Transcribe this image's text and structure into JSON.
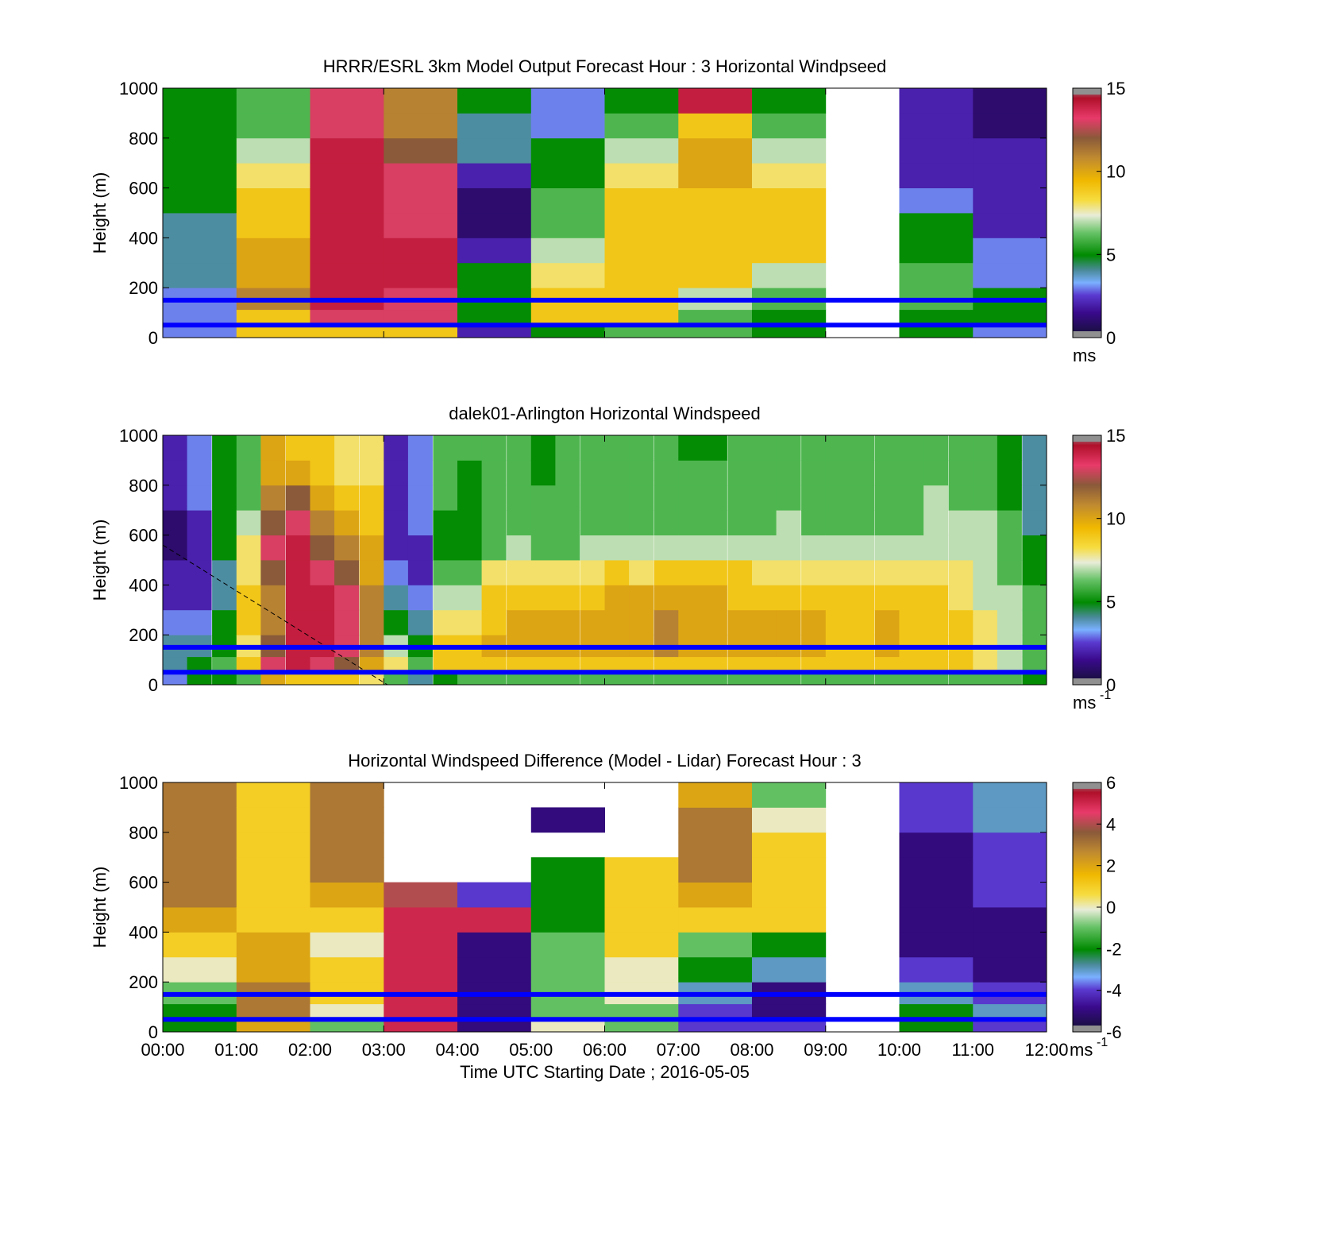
{
  "figure": {
    "xlabel": "Time UTC  Starting Date ; 2016-05-05",
    "line_color": "#0000ff",
    "line_heights": [
      150,
      50
    ],
    "time_ticks": [
      "00:00",
      "01:00",
      "02:00",
      "03:00",
      "04:00",
      "05:00",
      "06:00",
      "07:00",
      "08:00",
      "09:00",
      "10:00",
      "11:00",
      "12:00"
    ]
  },
  "chart_data": [
    {
      "type": "heatmap",
      "title": "HRRR/ESRL 3km Model Output   Forecast Hour : 3 Horizontal Windpseed",
      "ylabel": "Height (m)",
      "ylim": [
        0,
        1000
      ],
      "yticks": [
        "0",
        "200",
        "400",
        "600",
        "800",
        "1000"
      ],
      "xlim": [
        "00:00",
        "12:00"
      ],
      "colorbar": {
        "min": 0,
        "max": 15,
        "ticks": [
          "0",
          "5",
          "10",
          "15"
        ],
        "unit": "ms",
        "unit_sup": ""
      },
      "levels": [
        25,
        75,
        150,
        250,
        350,
        450,
        550,
        650,
        750,
        850,
        950
      ],
      "columns": [
        {
          "hour": 0,
          "values": [
            3,
            3,
            3,
            4,
            4,
            4,
            5,
            5,
            5,
            5,
            5
          ]
        },
        {
          "hour": 1,
          "values": [
            9,
            9,
            11,
            10,
            10,
            9,
            9,
            8,
            7,
            6,
            6
          ]
        },
        {
          "hour": 2,
          "values": [
            9,
            13,
            14,
            14,
            14,
            14,
            14,
            14,
            14,
            13,
            13
          ]
        },
        {
          "hour": 3,
          "values": [
            9,
            13,
            13,
            14,
            14,
            13,
            13,
            13,
            12,
            11,
            11
          ]
        },
        {
          "hour": 4,
          "values": [
            2,
            5,
            5,
            5,
            2,
            1,
            1,
            2,
            4,
            4,
            5
          ]
        },
        {
          "hour": 5,
          "values": [
            5,
            9,
            9,
            8,
            7,
            6,
            6,
            5,
            5,
            3,
            3
          ]
        },
        {
          "hour": 6,
          "values": [
            6,
            9,
            9,
            9,
            9,
            9,
            9,
            8,
            7,
            6,
            5
          ]
        },
        {
          "hour": 7,
          "values": [
            6,
            6,
            7,
            9,
            9,
            9,
            9,
            10,
            10,
            9,
            14
          ]
        },
        {
          "hour": 8,
          "values": [
            5,
            5,
            6,
            7,
            9,
            9,
            9,
            8,
            7,
            6,
            5
          ]
        },
        {
          "hour": 9,
          "values": [
            null,
            null,
            null,
            null,
            null,
            null,
            null,
            null,
            null,
            null,
            null
          ]
        },
        {
          "hour": 10,
          "values": [
            5,
            5,
            6,
            6,
            5,
            5,
            3,
            2,
            2,
            2,
            2
          ]
        },
        {
          "hour": 11,
          "values": [
            3,
            5,
            5,
            3,
            3,
            2,
            2,
            2,
            2,
            1,
            1
          ]
        }
      ]
    },
    {
      "type": "heatmap",
      "title": "dalek01-Arlington  Horizontal Windspeed",
      "ylabel": "Height (m)",
      "ylim": [
        0,
        1000
      ],
      "yticks": [
        "0",
        "200",
        "400",
        "600",
        "800",
        "1000"
      ],
      "xlim": [
        "00:00",
        "12:00"
      ],
      "colorbar": {
        "min": 0,
        "max": 15,
        "ticks": [
          "0",
          "5",
          "10",
          "15"
        ],
        "unit": "ms",
        "unit_sup": "-1"
      },
      "levels": [
        25,
        75,
        150,
        250,
        350,
        450,
        550,
        650,
        750,
        850,
        950
      ],
      "columns": [
        {
          "hour": 0.0,
          "values": [
            3,
            4,
            4,
            3,
            2,
            2,
            1,
            1,
            2,
            2,
            2
          ]
        },
        {
          "hour": 0.33,
          "values": [
            5,
            5,
            4,
            3,
            2,
            2,
            2,
            2,
            3,
            3,
            3
          ]
        },
        {
          "hour": 0.67,
          "values": [
            5,
            6,
            5,
            5,
            4,
            4,
            5,
            5,
            5,
            5,
            5
          ]
        },
        {
          "hour": 1.0,
          "values": [
            6,
            9,
            8,
            9,
            9,
            8,
            8,
            7,
            6,
            6,
            6
          ]
        },
        {
          "hour": 1.33,
          "values": [
            10,
            13,
            12,
            11,
            11,
            12,
            13,
            12,
            11,
            10,
            10
          ]
        },
        {
          "hour": 1.67,
          "values": [
            9,
            14,
            14,
            14,
            14,
            14,
            14,
            13,
            12,
            10,
            9
          ]
        },
        {
          "hour": 2.0,
          "values": [
            9,
            13,
            14,
            14,
            14,
            13,
            12,
            11,
            10,
            9,
            9
          ]
        },
        {
          "hour": 2.33,
          "values": [
            9,
            12,
            13,
            13,
            13,
            12,
            11,
            10,
            9,
            8,
            8
          ]
        },
        {
          "hour": 2.67,
          "values": [
            8,
            10,
            11,
            11,
            11,
            10,
            10,
            9,
            9,
            8,
            8
          ]
        },
        {
          "hour": 3.0,
          "values": [
            6,
            8,
            7,
            5,
            4,
            3,
            2,
            2,
            2,
            2,
            2
          ]
        },
        {
          "hour": 3.33,
          "values": [
            4,
            6,
            5,
            4,
            3,
            2,
            2,
            3,
            3,
            3,
            3
          ]
        },
        {
          "hour": 3.67,
          "values": [
            5,
            9,
            9,
            8,
            7,
            6,
            5,
            5,
            6,
            6,
            6
          ]
        },
        {
          "hour": 4.0,
          "values": [
            6,
            9,
            9,
            8,
            7,
            6,
            5,
            5,
            5,
            5,
            6
          ]
        },
        {
          "hour": 4.33,
          "values": [
            6,
            9,
            10,
            9,
            9,
            8,
            6,
            6,
            6,
            6,
            6
          ]
        },
        {
          "hour": 4.67,
          "values": [
            6,
            9,
            10,
            10,
            9,
            8,
            7,
            6,
            6,
            6,
            6
          ]
        },
        {
          "hour": 5.0,
          "values": [
            6,
            9,
            10,
            10,
            9,
            8,
            6,
            6,
            6,
            5,
            5
          ]
        },
        {
          "hour": 5.33,
          "values": [
            6,
            9,
            10,
            10,
            9,
            8,
            6,
            6,
            6,
            6,
            6
          ]
        },
        {
          "hour": 5.67,
          "values": [
            6,
            9,
            10,
            10,
            9,
            8,
            7,
            6,
            6,
            6,
            6
          ]
        },
        {
          "hour": 6.0,
          "values": [
            6,
            9,
            10,
            10,
            10,
            9,
            7,
            6,
            6,
            6,
            6
          ]
        },
        {
          "hour": 6.33,
          "values": [
            6,
            9,
            10,
            10,
            10,
            8,
            7,
            6,
            6,
            6,
            6
          ]
        },
        {
          "hour": 6.67,
          "values": [
            6,
            9,
            11,
            11,
            10,
            9,
            7,
            6,
            6,
            6,
            6
          ]
        },
        {
          "hour": 7.0,
          "values": [
            6,
            9,
            10,
            10,
            10,
            9,
            7,
            6,
            6,
            6,
            5
          ]
        },
        {
          "hour": 7.33,
          "values": [
            6,
            9,
            10,
            10,
            10,
            9,
            7,
            6,
            6,
            6,
            5
          ]
        },
        {
          "hour": 7.67,
          "values": [
            6,
            9,
            10,
            10,
            9,
            9,
            7,
            6,
            6,
            6,
            6
          ]
        },
        {
          "hour": 8.0,
          "values": [
            6,
            9,
            10,
            10,
            9,
            8,
            7,
            6,
            6,
            6,
            6
          ]
        },
        {
          "hour": 8.33,
          "values": [
            6,
            9,
            10,
            10,
            9,
            8,
            7,
            7,
            6,
            6,
            6
          ]
        },
        {
          "hour": 8.67,
          "values": [
            6,
            9,
            10,
            10,
            9,
            8,
            7,
            6,
            6,
            6,
            6
          ]
        },
        {
          "hour": 9.0,
          "values": [
            6,
            9,
            9,
            9,
            9,
            8,
            7,
            6,
            6,
            6,
            6
          ]
        },
        {
          "hour": 9.33,
          "values": [
            6,
            9,
            9,
            9,
            9,
            8,
            7,
            6,
            6,
            6,
            6
          ]
        },
        {
          "hour": 9.67,
          "values": [
            6,
            9,
            10,
            10,
            9,
            8,
            7,
            6,
            6,
            6,
            6
          ]
        },
        {
          "hour": 10.0,
          "values": [
            6,
            9,
            9,
            9,
            9,
            8,
            7,
            6,
            6,
            6,
            6
          ]
        },
        {
          "hour": 10.33,
          "values": [
            6,
            9,
            9,
            9,
            9,
            8,
            7,
            7,
            7,
            6,
            6
          ]
        },
        {
          "hour": 10.67,
          "values": [
            6,
            9,
            9,
            9,
            8,
            8,
            7,
            7,
            6,
            6,
            6
          ]
        },
        {
          "hour": 11.0,
          "values": [
            6,
            8,
            8,
            8,
            7,
            7,
            7,
            7,
            6,
            6,
            6
          ]
        },
        {
          "hour": 11.33,
          "values": [
            6,
            7,
            7,
            7,
            7,
            6,
            6,
            6,
            5,
            5,
            5
          ]
        },
        {
          "hour": 11.67,
          "values": [
            5,
            6,
            6,
            6,
            6,
            5,
            5,
            4,
            4,
            4,
            4
          ]
        }
      ],
      "dashed_line": {
        "x": [
          0.0,
          3.05
        ],
        "y": [
          560,
          0
        ]
      }
    },
    {
      "type": "heatmap",
      "title": "Horizontal Windspeed Difference (Model - Lidar) Forecast Hour : 3",
      "ylabel": "Height (m)",
      "xlabel": "Time UTC  Starting Date ; 2016-05-05",
      "ylim": [
        0,
        1000
      ],
      "yticks": [
        "0",
        "200",
        "400",
        "600",
        "800",
        "1000"
      ],
      "xticks": [
        "00:00",
        "01:00",
        "02:00",
        "03:00",
        "04:00",
        "05:00",
        "06:00",
        "07:00",
        "08:00",
        "09:00",
        "10:00",
        "11:00",
        "12:00"
      ],
      "colorbar": {
        "min": -6,
        "max": 6,
        "ticks": [
          "-6",
          "-4",
          "-2",
          "0",
          "2",
          "4",
          "6"
        ],
        "unit": "ms",
        "unit_sup": "-1"
      },
      "levels": [
        25,
        75,
        150,
        250,
        350,
        450,
        550,
        650,
        750,
        850,
        950
      ],
      "columns": [
        {
          "hour": 0,
          "values": [
            -2,
            -2,
            -1,
            0,
            1,
            2,
            3,
            3,
            3,
            3,
            3
          ]
        },
        {
          "hour": 1,
          "values": [
            2,
            3,
            3,
            2,
            2,
            1,
            1,
            1,
            1,
            1,
            1
          ]
        },
        {
          "hour": 2,
          "values": [
            -1,
            0,
            1,
            1,
            0,
            1,
            2,
            3,
            3,
            3,
            3
          ]
        },
        {
          "hour": 3,
          "values": [
            5,
            5,
            5,
            5,
            5,
            5,
            4,
            null,
            null,
            null,
            null
          ]
        },
        {
          "hour": 4,
          "values": [
            -5,
            -5,
            -5,
            -5,
            -5,
            5,
            -4,
            null,
            null,
            null,
            null
          ]
        },
        {
          "hour": 5,
          "values": [
            0,
            -1,
            -1,
            -1,
            -1,
            -2,
            -2,
            -2,
            null,
            -5,
            null
          ]
        },
        {
          "hour": 6,
          "values": [
            -1,
            -1,
            0,
            0,
            1,
            1,
            1,
            1,
            null,
            null,
            null
          ]
        },
        {
          "hour": 7,
          "values": [
            -4,
            -4,
            -3,
            -2,
            -1,
            1,
            2,
            3,
            3,
            3,
            2
          ]
        },
        {
          "hour": 8,
          "values": [
            -4,
            -5,
            -5,
            -3,
            -2,
            1,
            1,
            1,
            1,
            0,
            -1
          ]
        },
        {
          "hour": 9,
          "values": [
            null,
            null,
            null,
            null,
            null,
            null,
            null,
            null,
            null,
            null,
            null
          ]
        },
        {
          "hour": 10,
          "values": [
            -2,
            -2,
            -3,
            -4,
            -5,
            -5,
            -5,
            -5,
            -5,
            -4,
            -4
          ]
        },
        {
          "hour": 11,
          "values": [
            -4,
            -3,
            -4,
            -5,
            -5,
            -5,
            -4,
            -4,
            -4,
            -3,
            -3
          ]
        }
      ]
    }
  ]
}
